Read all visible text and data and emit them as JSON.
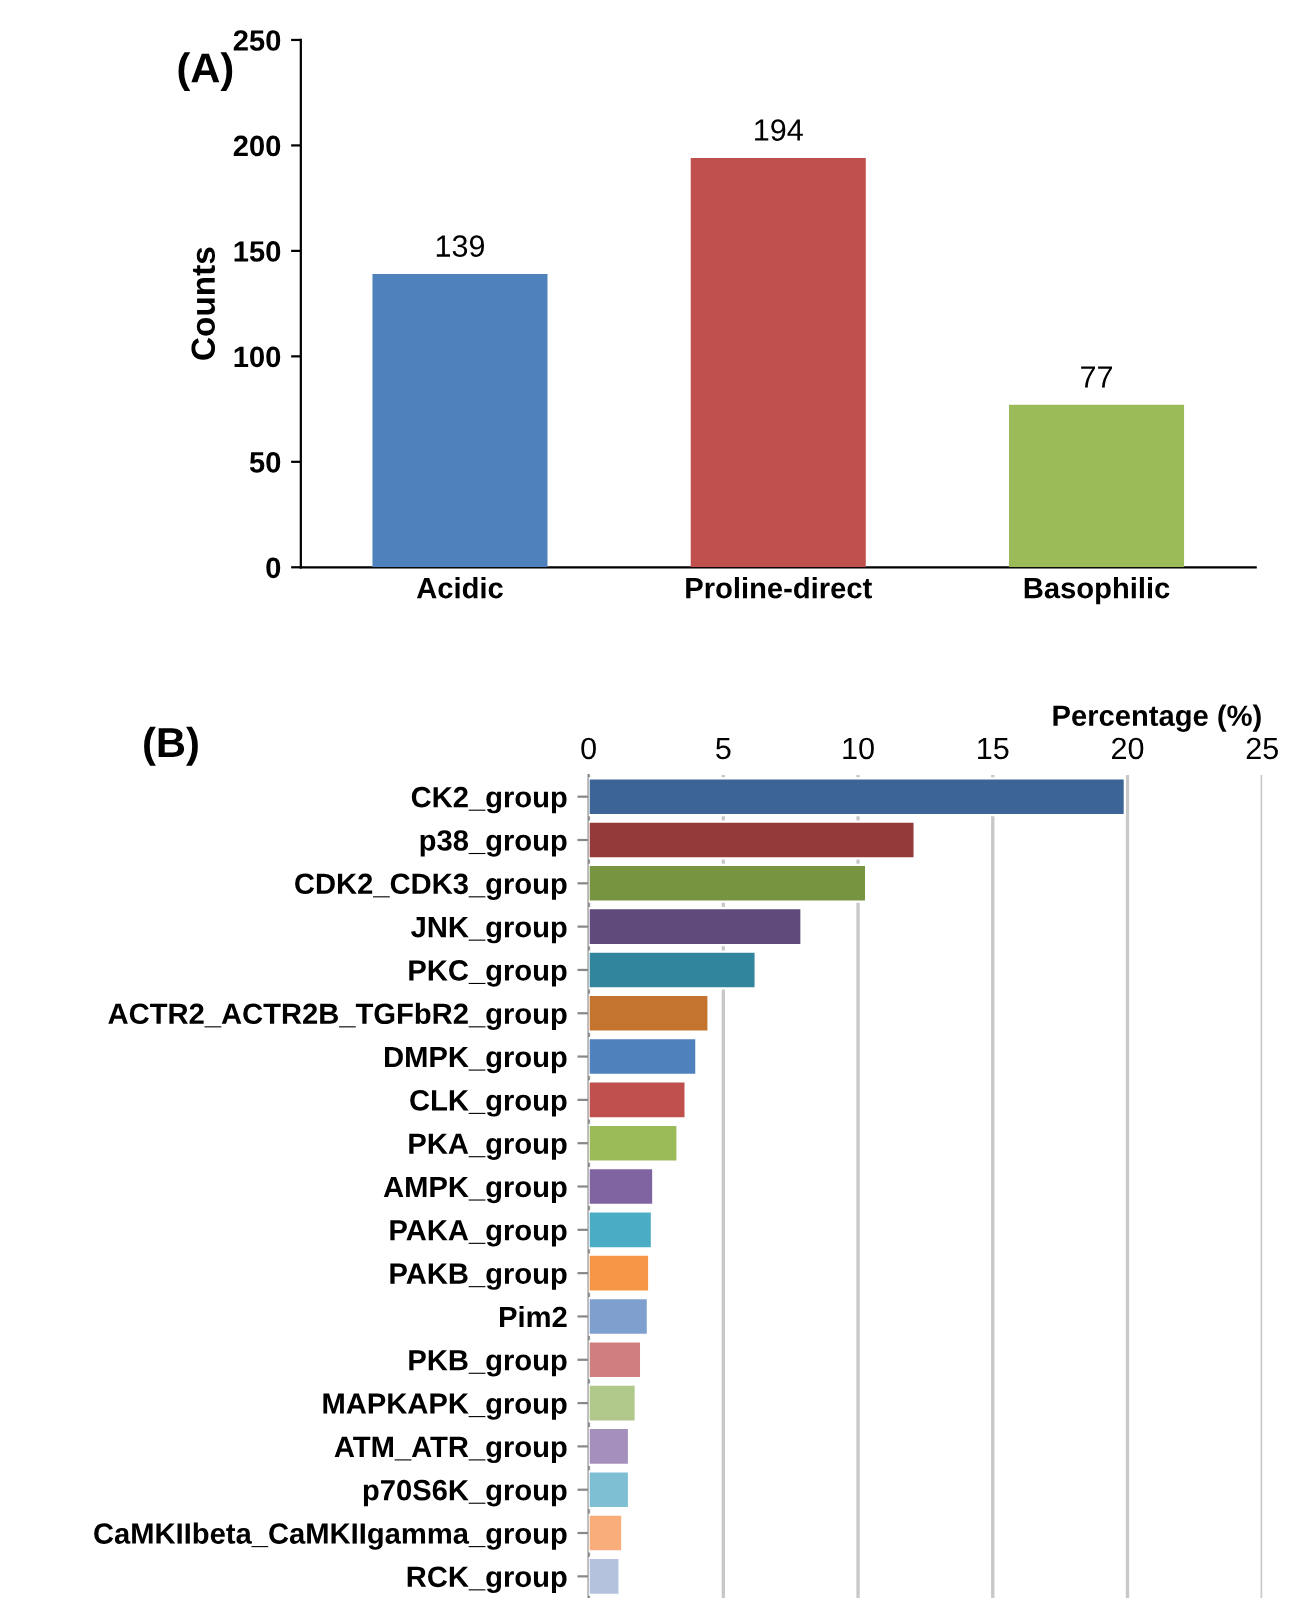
{
  "chart_data": [
    {
      "type": "bar",
      "ylabel": "Counts",
      "annotations": [
        "(A)"
      ],
      "categories": [
        "Acidic",
        "Proline-direct",
        "Basophilic"
      ],
      "values": [
        139,
        194,
        77
      ],
      "colors": [
        "#4f81bd",
        "#c0504d",
        "#9bbb59"
      ],
      "data_labels": true,
      "ylim": [
        0,
        250
      ],
      "yticks": [
        0,
        50,
        100,
        150,
        200,
        250
      ],
      "grid": false
    },
    {
      "type": "bar",
      "orientation": "horizontal",
      "xlabel": "Percentage (%)",
      "annotations": [
        "(B)"
      ],
      "categories": [
        "CK2_group",
        "p38_group",
        "CDK2_CDK3_group",
        "JNK_group",
        "PKC_group",
        "ACTR2_ACTR2B_TGFbR2_group",
        "DMPK_group",
        "CLK_group",
        "PKA_group",
        "AMPK_group",
        "PAKA_group",
        "PAKB_group",
        "Pim2",
        "PKB_group",
        "MAPKAPK_group",
        "ATM_ATR_group",
        "p70S6K_group",
        "CaMKIIbeta_CaMKIIgamma_group",
        "RCK_group"
      ],
      "values": [
        19.9,
        12.1,
        10.3,
        7.9,
        6.2,
        4.45,
        4.0,
        3.6,
        3.3,
        2.4,
        2.35,
        2.25,
        2.2,
        1.95,
        1.75,
        1.5,
        1.5,
        1.25,
        1.15
      ],
      "colors": [
        "#3c6496",
        "#953a3a",
        "#779440",
        "#604a7b",
        "#31859c",
        "#c4742f",
        "#4f81bd",
        "#c0504d",
        "#9bbb59",
        "#8064a2",
        "#4bacc6",
        "#f79646",
        "#7f9fcf",
        "#cf7f7f",
        "#b0c98a",
        "#a48fbd",
        "#7fbfd4",
        "#f9ad7a",
        "#b4c2de"
      ],
      "xlim": [
        0,
        25
      ],
      "xticks": [
        0,
        5,
        10,
        15,
        20,
        25
      ],
      "grid": "x"
    }
  ]
}
